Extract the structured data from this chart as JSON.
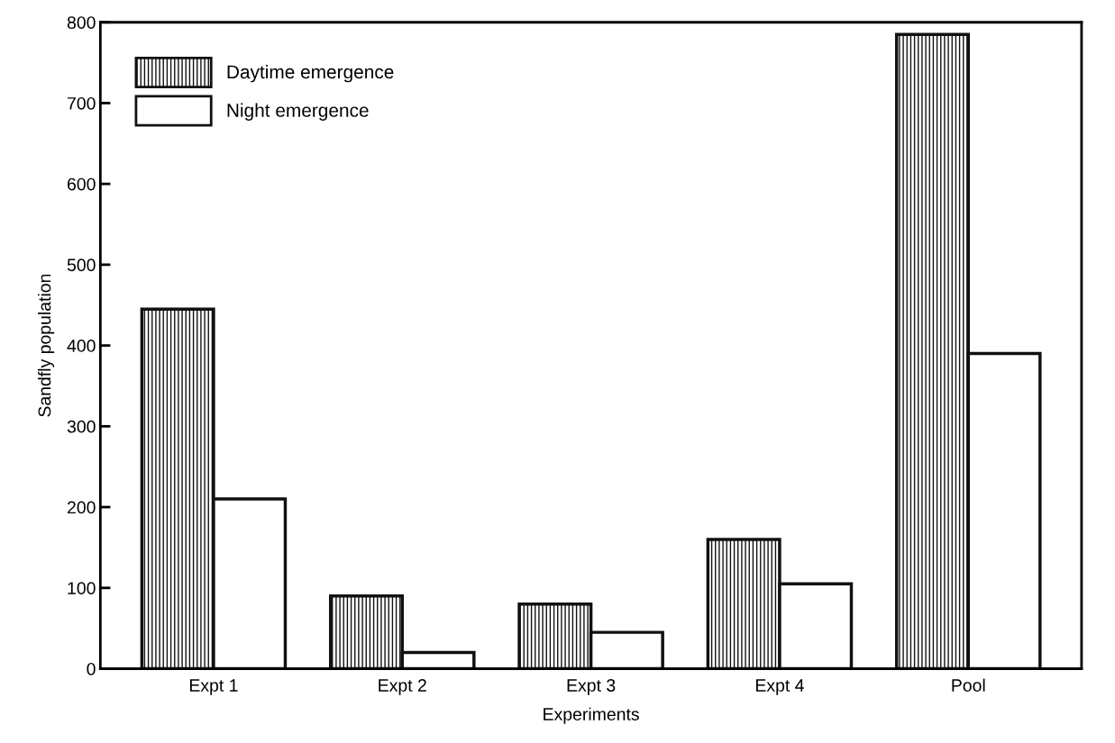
{
  "chart_data": {
    "type": "bar",
    "xlabel": "Experiments",
    "ylabel": "Sandfly population",
    "categories": [
      "Expt 1",
      "Expt 2",
      "Expt 3",
      "Expt 4",
      "Pool"
    ],
    "series": [
      {
        "name": "Daytime emergence",
        "color": "#111111",
        "values": [
          445,
          90,
          80,
          160,
          785
        ]
      },
      {
        "name": "Night emergence",
        "color": "#ffffff",
        "values": [
          210,
          20,
          45,
          105,
          390
        ]
      }
    ],
    "ylim": [
      0,
      800
    ],
    "yticks": [
      0,
      100,
      200,
      300,
      400,
      500,
      600,
      700,
      800
    ],
    "grid": false,
    "legend": "top left"
  }
}
